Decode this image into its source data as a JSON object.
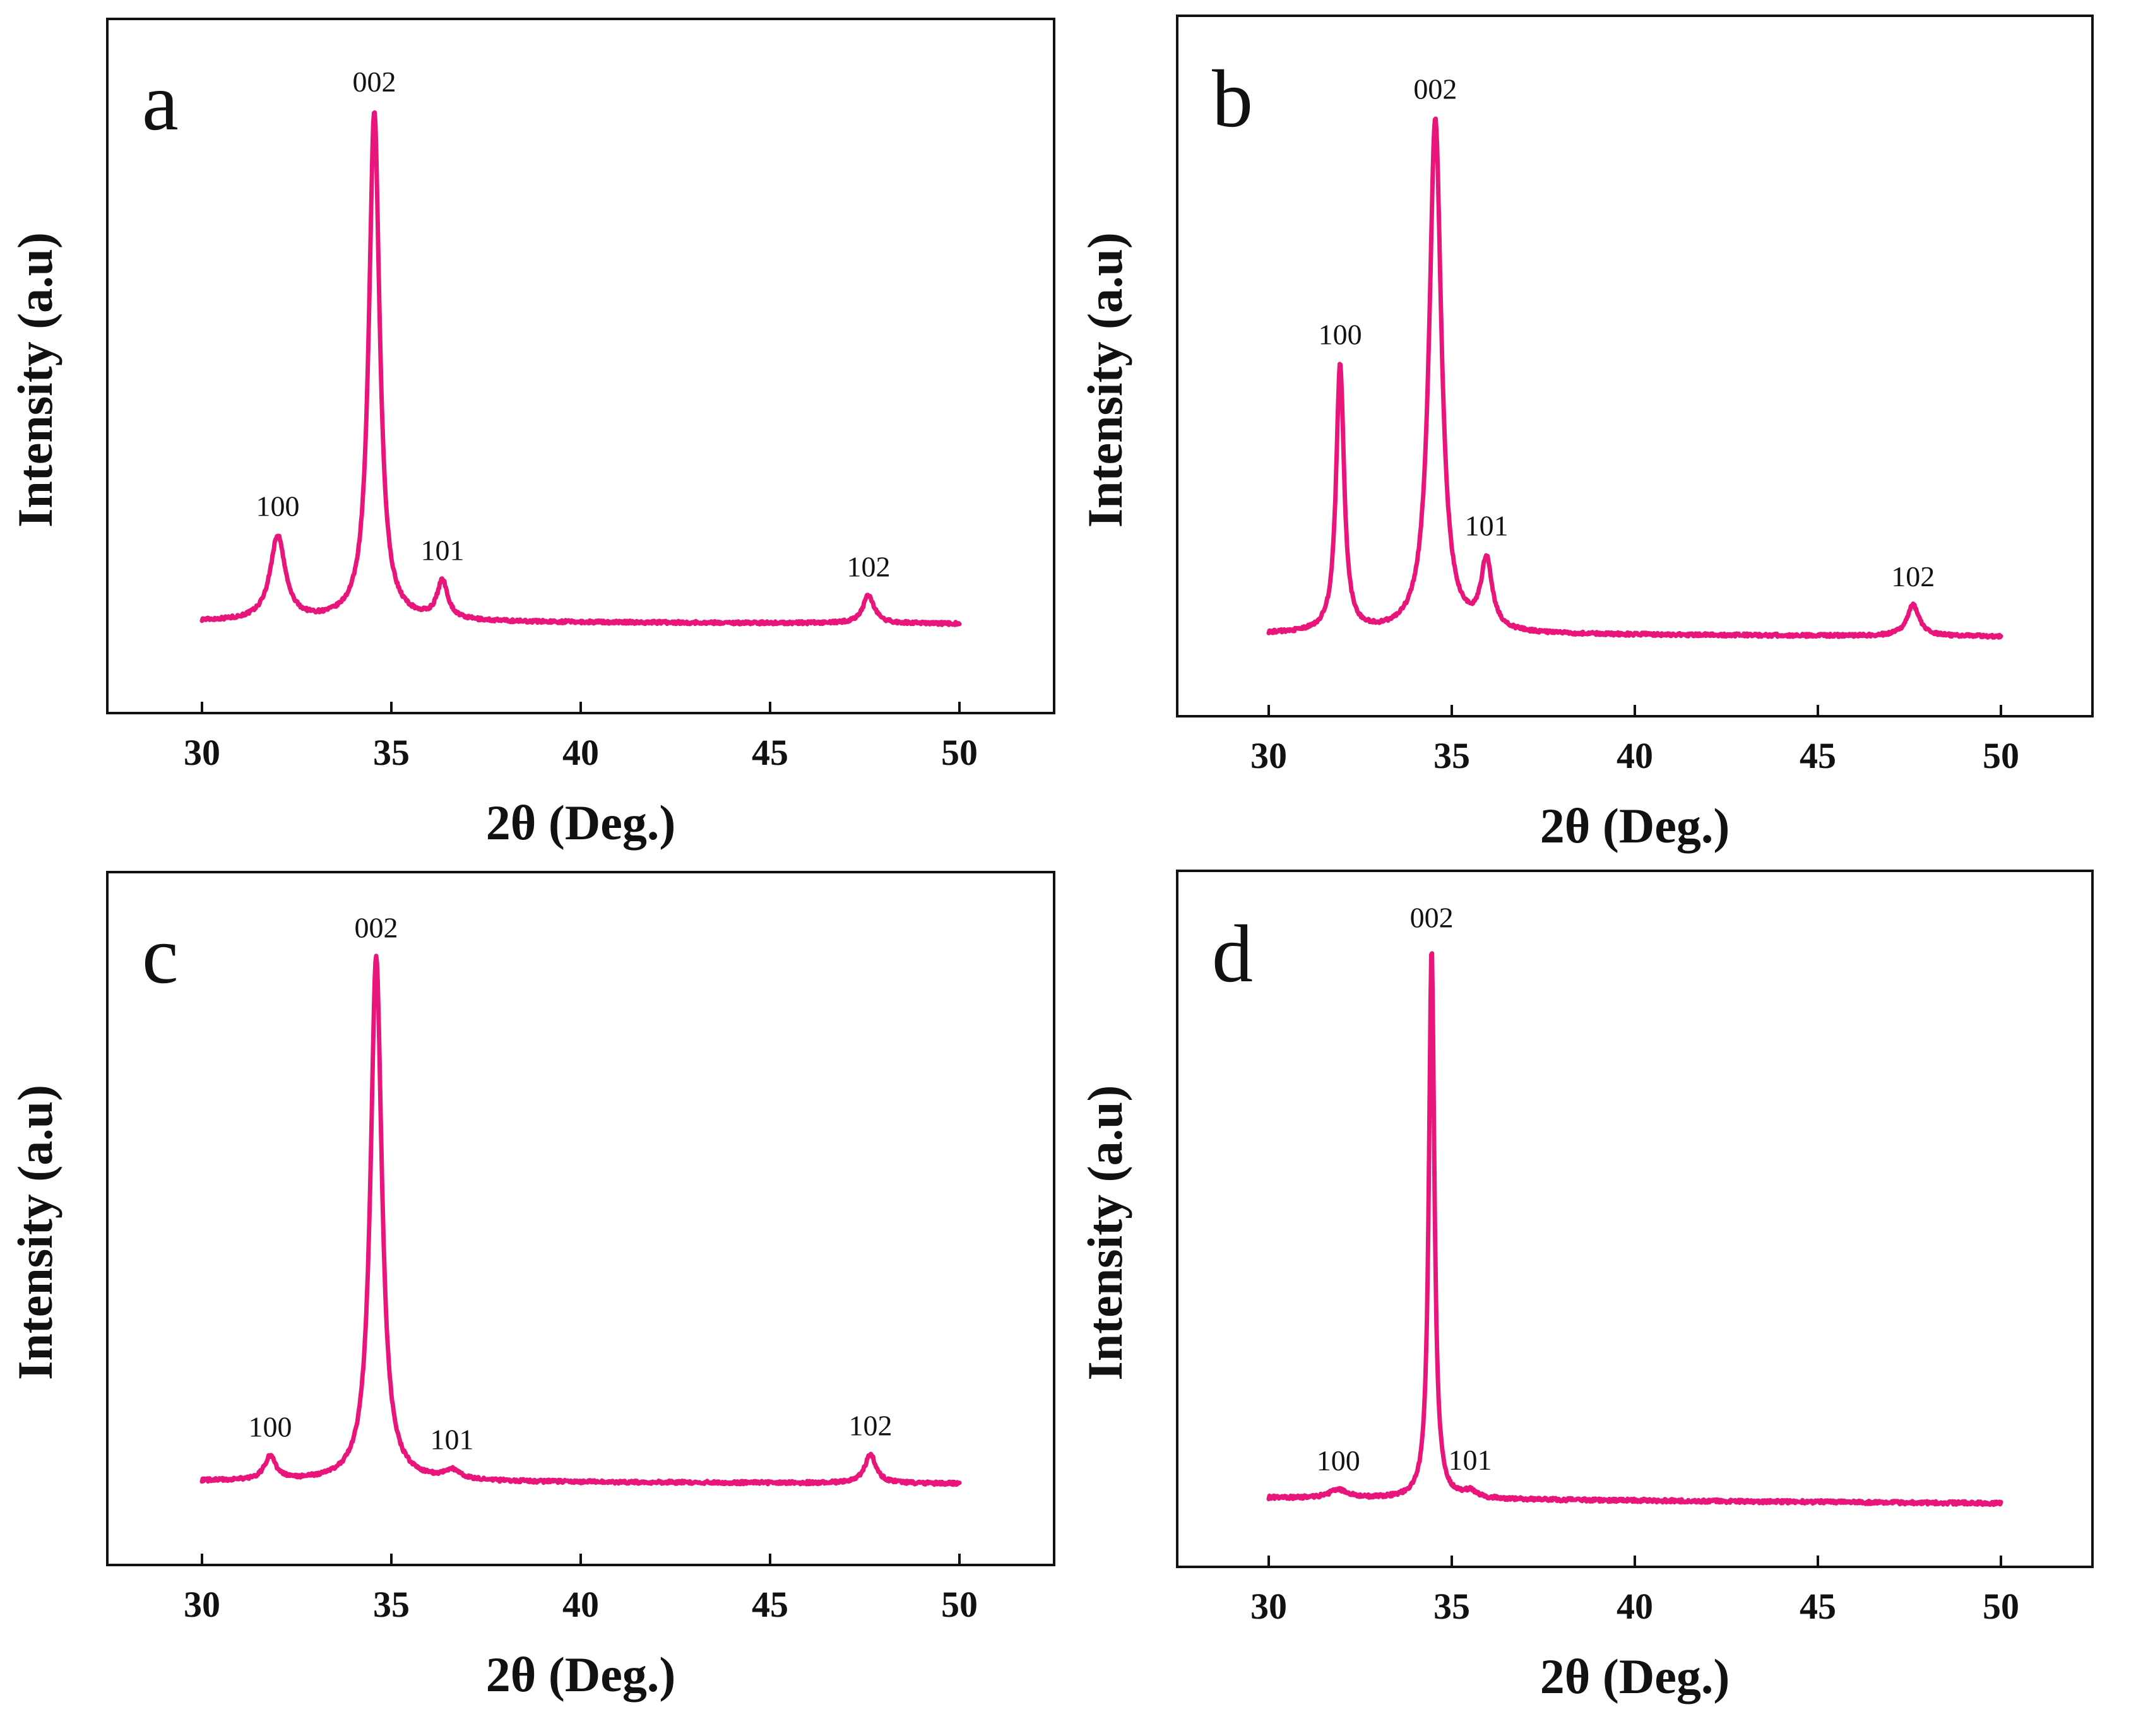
{
  "figure": {
    "series_color": "#e8157a"
  },
  "chart_data": [
    {
      "panel": "a",
      "type": "line",
      "xlabel": "2θ (Deg.)",
      "ylabel": "Intensity (a.u)",
      "xlim": [
        27.5,
        52.5
      ],
      "ylim": [
        -0.18,
        1.18
      ],
      "xticks": [
        30,
        35,
        40,
        45,
        50
      ],
      "baseline": [
        0.0,
        -0.005
      ],
      "peaks": [
        {
          "label": "100",
          "x": 32.0,
          "height": 0.165,
          "width": 0.24
        },
        {
          "label": "002",
          "x": 34.55,
          "height": 1.0,
          "width": 0.17
        },
        {
          "label": "101",
          "x": 36.35,
          "height": 0.075,
          "width": 0.17
        },
        {
          "label": "102",
          "x": 47.6,
          "height": 0.055,
          "width": 0.18
        }
      ]
    },
    {
      "panel": "b",
      "type": "line",
      "xlabel": "2θ (Deg.)",
      "ylabel": "Intensity (a.u)",
      "xlim": [
        27.5,
        52.5
      ],
      "ylim": [
        -0.16,
        1.2
      ],
      "xticks": [
        30,
        35,
        40,
        45,
        50
      ],
      "baseline": [
        0.0,
        -0.005
      ],
      "peaks": [
        {
          "label": "100",
          "x": 31.95,
          "height": 0.52,
          "width": 0.13
        },
        {
          "label": "002",
          "x": 34.55,
          "height": 1.0,
          "width": 0.2
        },
        {
          "label": "101",
          "x": 35.95,
          "height": 0.135,
          "width": 0.18
        },
        {
          "label": "102",
          "x": 47.6,
          "height": 0.06,
          "width": 0.2
        }
      ]
    },
    {
      "panel": "c",
      "type": "line",
      "xlabel": "2θ (Deg.)",
      "ylabel": "Intensity (a.u)",
      "xlim": [
        27.5,
        52.5
      ],
      "ylim": [
        -0.16,
        1.16
      ],
      "xticks": [
        30,
        35,
        40,
        45,
        50
      ],
      "baseline": [
        0.0,
        -0.005
      ],
      "peaks": [
        {
          "label": "100",
          "x": 31.8,
          "height": 0.045,
          "width": 0.18
        },
        {
          "label": "002",
          "x": 34.6,
          "height": 1.0,
          "width": 0.18
        },
        {
          "label": "101",
          "x": 36.6,
          "height": 0.018,
          "width": 0.25
        },
        {
          "label": "102",
          "x": 47.65,
          "height": 0.055,
          "width": 0.18
        }
      ]
    },
    {
      "panel": "d",
      "type": "line",
      "xlabel": "2θ (Deg.)",
      "ylabel": "Intensity (a.u)",
      "xlim": [
        27.5,
        52.5
      ],
      "ylim": [
        -0.12,
        1.14
      ],
      "xticks": [
        30,
        35,
        40,
        45,
        50
      ],
      "baseline": [
        0.005,
        -0.005
      ],
      "peaks": [
        {
          "label": "100",
          "x": 31.9,
          "height": 0.015,
          "width": 0.3
        },
        {
          "label": "002",
          "x": 34.45,
          "height": 1.0,
          "width": 0.09
        },
        {
          "label": "101",
          "x": 35.5,
          "height": 0.012,
          "width": 0.2
        }
      ]
    }
  ]
}
